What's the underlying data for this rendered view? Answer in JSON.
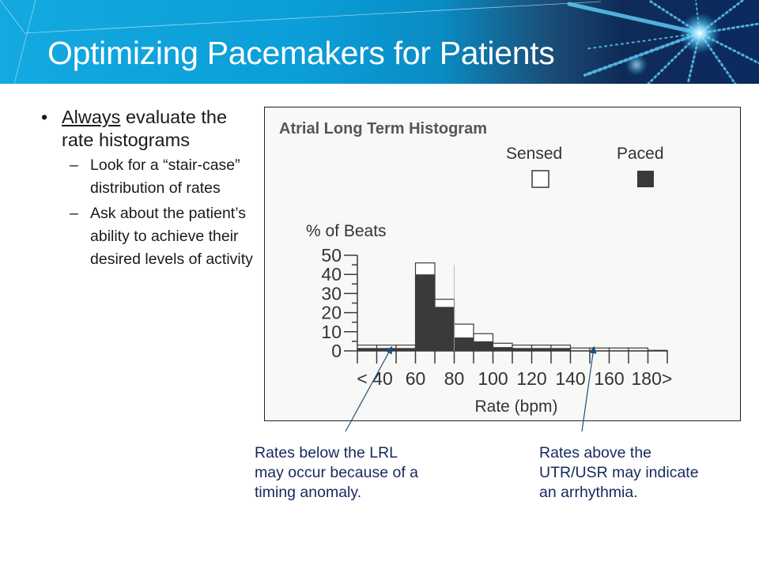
{
  "slide": {
    "title": "Optimizing Pacemakers for Patients",
    "bullets": {
      "main_emphasis": "Always",
      "main_rest": " evaluate the rate histograms",
      "sub": [
        "Look for a “stair-case” distribution of rates",
        "Ask about the patient’s ability to achieve their desired levels of activity"
      ]
    },
    "callouts": {
      "left": [
        "Rates below the LRL",
        "may occur because of a",
        "timing anomaly."
      ],
      "right": [
        "Rates above the",
        "UTR/USR may indicate",
        "an arrhythmia."
      ]
    },
    "colors": {
      "header_blue": "#0b9ed8",
      "header_navy": "#0f2b58",
      "callout_text": "#152a5c",
      "paced_fill": "#3a3a3a",
      "sensed_fill": "#ffffff"
    }
  },
  "chart_data": {
    "type": "bar",
    "stacked": true,
    "title": "Atrial Long Term Histogram",
    "xlabel": "Rate (bpm)",
    "ylabel": "% of Beats",
    "ylim": [
      0,
      50
    ],
    "yticks": [
      0,
      10,
      20,
      30,
      40,
      50
    ],
    "xtick_labels": [
      "< 40",
      "60",
      "80",
      "100",
      "120",
      "140",
      "160",
      "180>"
    ],
    "legend": [
      "Sensed",
      "Paced"
    ],
    "legend_position": "top-right",
    "categories": [
      "<40",
      "40-50",
      "50-60",
      "60-70",
      "70-80",
      "80-90",
      "90-100",
      "100-110",
      "110-120",
      "120-130",
      "130-140",
      "140-150",
      "150-160",
      "160-170",
      "170-180",
      "180>"
    ],
    "series": [
      {
        "name": "Paced",
        "values": [
          1.5,
          1.5,
          1.5,
          40,
          23,
          7,
          5,
          2,
          1.5,
          1.5,
          1.5,
          0,
          0,
          0,
          0,
          0
        ]
      },
      {
        "name": "Sensed",
        "values": [
          1.5,
          1.5,
          1.5,
          6,
          4,
          7,
          4,
          2,
          1.5,
          1.5,
          1.5,
          1.5,
          1.5,
          1.5,
          1.5,
          0.3
        ]
      }
    ],
    "totals": [
      3,
      3,
      3,
      46,
      27,
      14,
      9,
      4,
      3,
      3,
      3,
      1.5,
      1.5,
      1.5,
      1.5,
      0.3
    ]
  }
}
